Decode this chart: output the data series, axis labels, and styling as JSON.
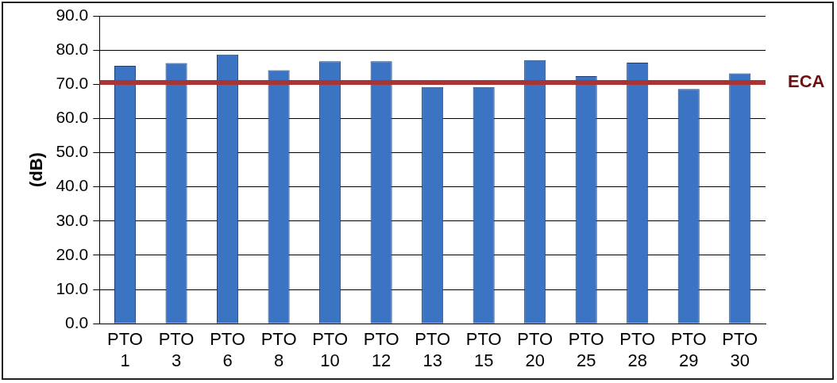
{
  "chart_data": {
    "type": "bar",
    "ylabel": "(dB)",
    "categories": [
      "PTO 1",
      "PTO 3",
      "PTO 6",
      "PTO 8",
      "PTO 10",
      "PTO 12",
      "PTO 13",
      "PTO 15",
      "PTO 20",
      "PTO 25",
      "PTO 28",
      "PTO 29",
      "PTO 30"
    ],
    "values": [
      75.4,
      76.2,
      78.7,
      74.1,
      76.7,
      76.7,
      69.2,
      69.2,
      77.1,
      72.4,
      76.3,
      68.6,
      73.2
    ],
    "color": "#3b74c2",
    "ylim": [
      0,
      90
    ],
    "yticks": [
      {
        "value": 0,
        "label": "0.0"
      },
      {
        "value": 10,
        "label": "10.0"
      },
      {
        "value": 20,
        "label": "20.0"
      },
      {
        "value": 30,
        "label": "30.0"
      },
      {
        "value": 40,
        "label": "40.0"
      },
      {
        "value": 50,
        "label": "50.0"
      },
      {
        "value": 60,
        "label": "60.0"
      },
      {
        "value": 70,
        "label": "70.0"
      },
      {
        "value": 80,
        "label": "80.0"
      },
      {
        "value": 90,
        "label": "90.0"
      }
    ],
    "grid": "y",
    "ref_lines": [
      {
        "axis": "y",
        "value": 70.5,
        "label": "ECA",
        "color": "#a83434"
      }
    ]
  }
}
